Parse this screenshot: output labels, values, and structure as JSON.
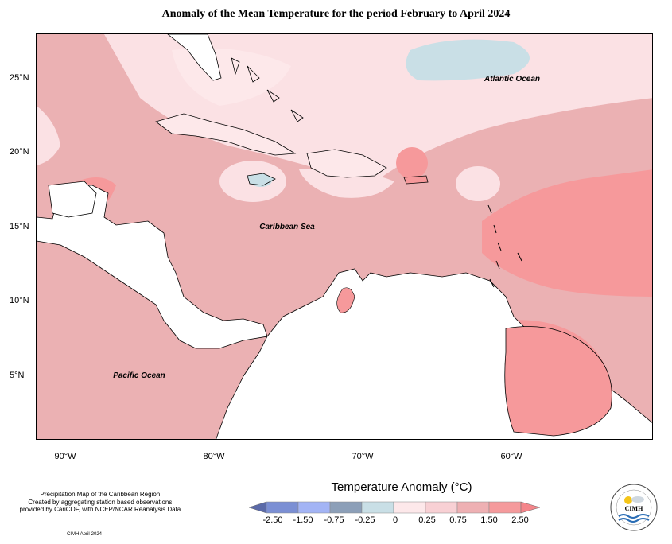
{
  "title": "Anomaly of the Mean Temperature for the period February to April 2024",
  "map": {
    "lat_labels": [
      "25°N",
      "20°N",
      "15°N",
      "10°N",
      "5°N"
    ],
    "lon_labels": [
      "90°W",
      "80°W",
      "70°W",
      "60°W"
    ],
    "ocean_labels": {
      "atlantic": "Atlantic Ocean",
      "caribbean": "Caribbean Sea",
      "pacific": "Pacific Ocean"
    }
  },
  "footer": {
    "line1": "Precipitation Map of the Caribbean Region.",
    "line2": "Created by aggregating station based observations,",
    "line3": "provided by CariCOF, with NCEP/NCAR Reanalysis Data.",
    "date": "CIMH April-2024"
  },
  "legend": {
    "title": "Temperature Anomaly (°C)",
    "ticks": [
      "-2.50",
      "-1.50",
      "-0.75",
      "-0.25",
      "0",
      "0.25",
      "0.75",
      "1.50",
      "2.50"
    ],
    "colors": [
      "#5b6aa8",
      "#7b8fd4",
      "#a3b4f5",
      "#8c9fb8",
      "#c9dfe6",
      "#fde8ea",
      "#f8d0d4",
      "#eeb0b3",
      "#f59a9c",
      "#f4858a"
    ]
  },
  "logo": {
    "text": "CIMH",
    "ring_text": "Caribbean Institute for Meteorology and Hydrology"
  },
  "colors": {
    "anomaly_low": "#fbe1e4",
    "anomaly_mid": "#ebb1b3",
    "anomaly_high": "#f6999b",
    "cool_patch": "#c9dfe6",
    "land_white": "#ffffff"
  }
}
